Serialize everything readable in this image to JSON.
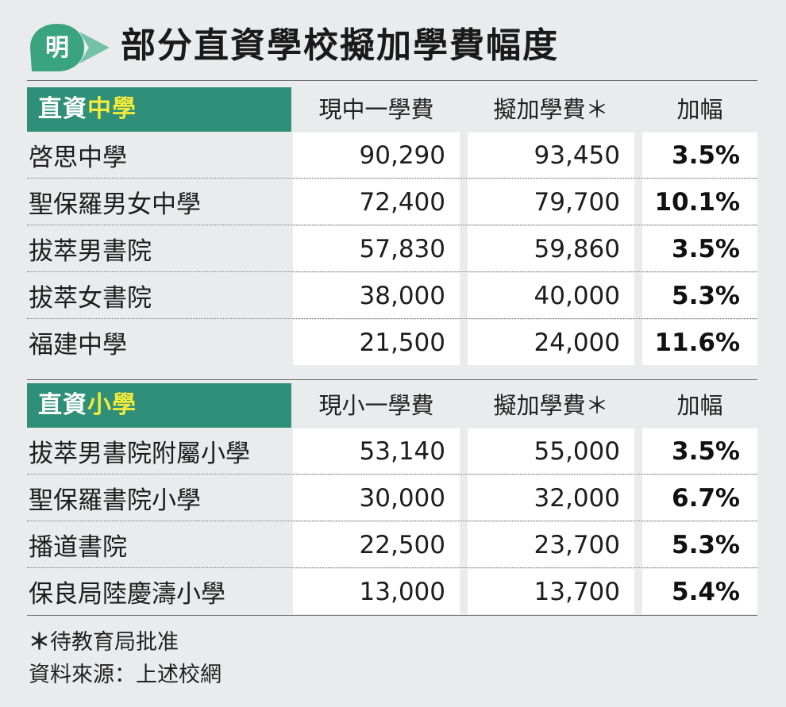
{
  "logo_char": "明",
  "title": "部分直資學校擬加學費幅度",
  "secondary": {
    "tag_prefix": "直資",
    "tag_highlight": "中學",
    "columns": [
      "現中一學費",
      "擬加學費＊",
      "加幅"
    ],
    "rows": [
      {
        "school": "啓思中學",
        "current": "90,290",
        "proposed": "93,450",
        "increase": "3.5%"
      },
      {
        "school": "聖保羅男女中學",
        "current": "72,400",
        "proposed": "79,700",
        "increase": "10.1%"
      },
      {
        "school": "拔萃男書院",
        "current": "57,830",
        "proposed": "59,860",
        "increase": "3.5%"
      },
      {
        "school": "拔萃女書院",
        "current": "38,000",
        "proposed": "40,000",
        "increase": "5.3%"
      },
      {
        "school": "福建中學",
        "current": "21,500",
        "proposed": "24,000",
        "increase": "11.6%"
      }
    ]
  },
  "primary": {
    "tag_prefix": "直資",
    "tag_highlight": "小學",
    "columns": [
      "現小一學費",
      "擬加學費＊",
      "加幅"
    ],
    "rows": [
      {
        "school": "拔萃男書院附屬小學",
        "current": "53,140",
        "proposed": "55,000",
        "increase": "3.5%"
      },
      {
        "school": "聖保羅書院小學",
        "current": "30,000",
        "proposed": "32,000",
        "increase": "6.7%"
      },
      {
        "school": "播道書院",
        "current": "22,500",
        "proposed": "23,700",
        "increase": "5.3%"
      },
      {
        "school": "保良局陸慶濤小學",
        "current": "13,000",
        "proposed": "13,700",
        "increase": "5.4%"
      }
    ]
  },
  "footnote_star": "＊",
  "footnote": "待教育局批准",
  "source": "資料來源：上述校網",
  "colors": {
    "accent": "#2f8f79",
    "highlight": "#f4ea3a",
    "background": "#e9ebec"
  }
}
